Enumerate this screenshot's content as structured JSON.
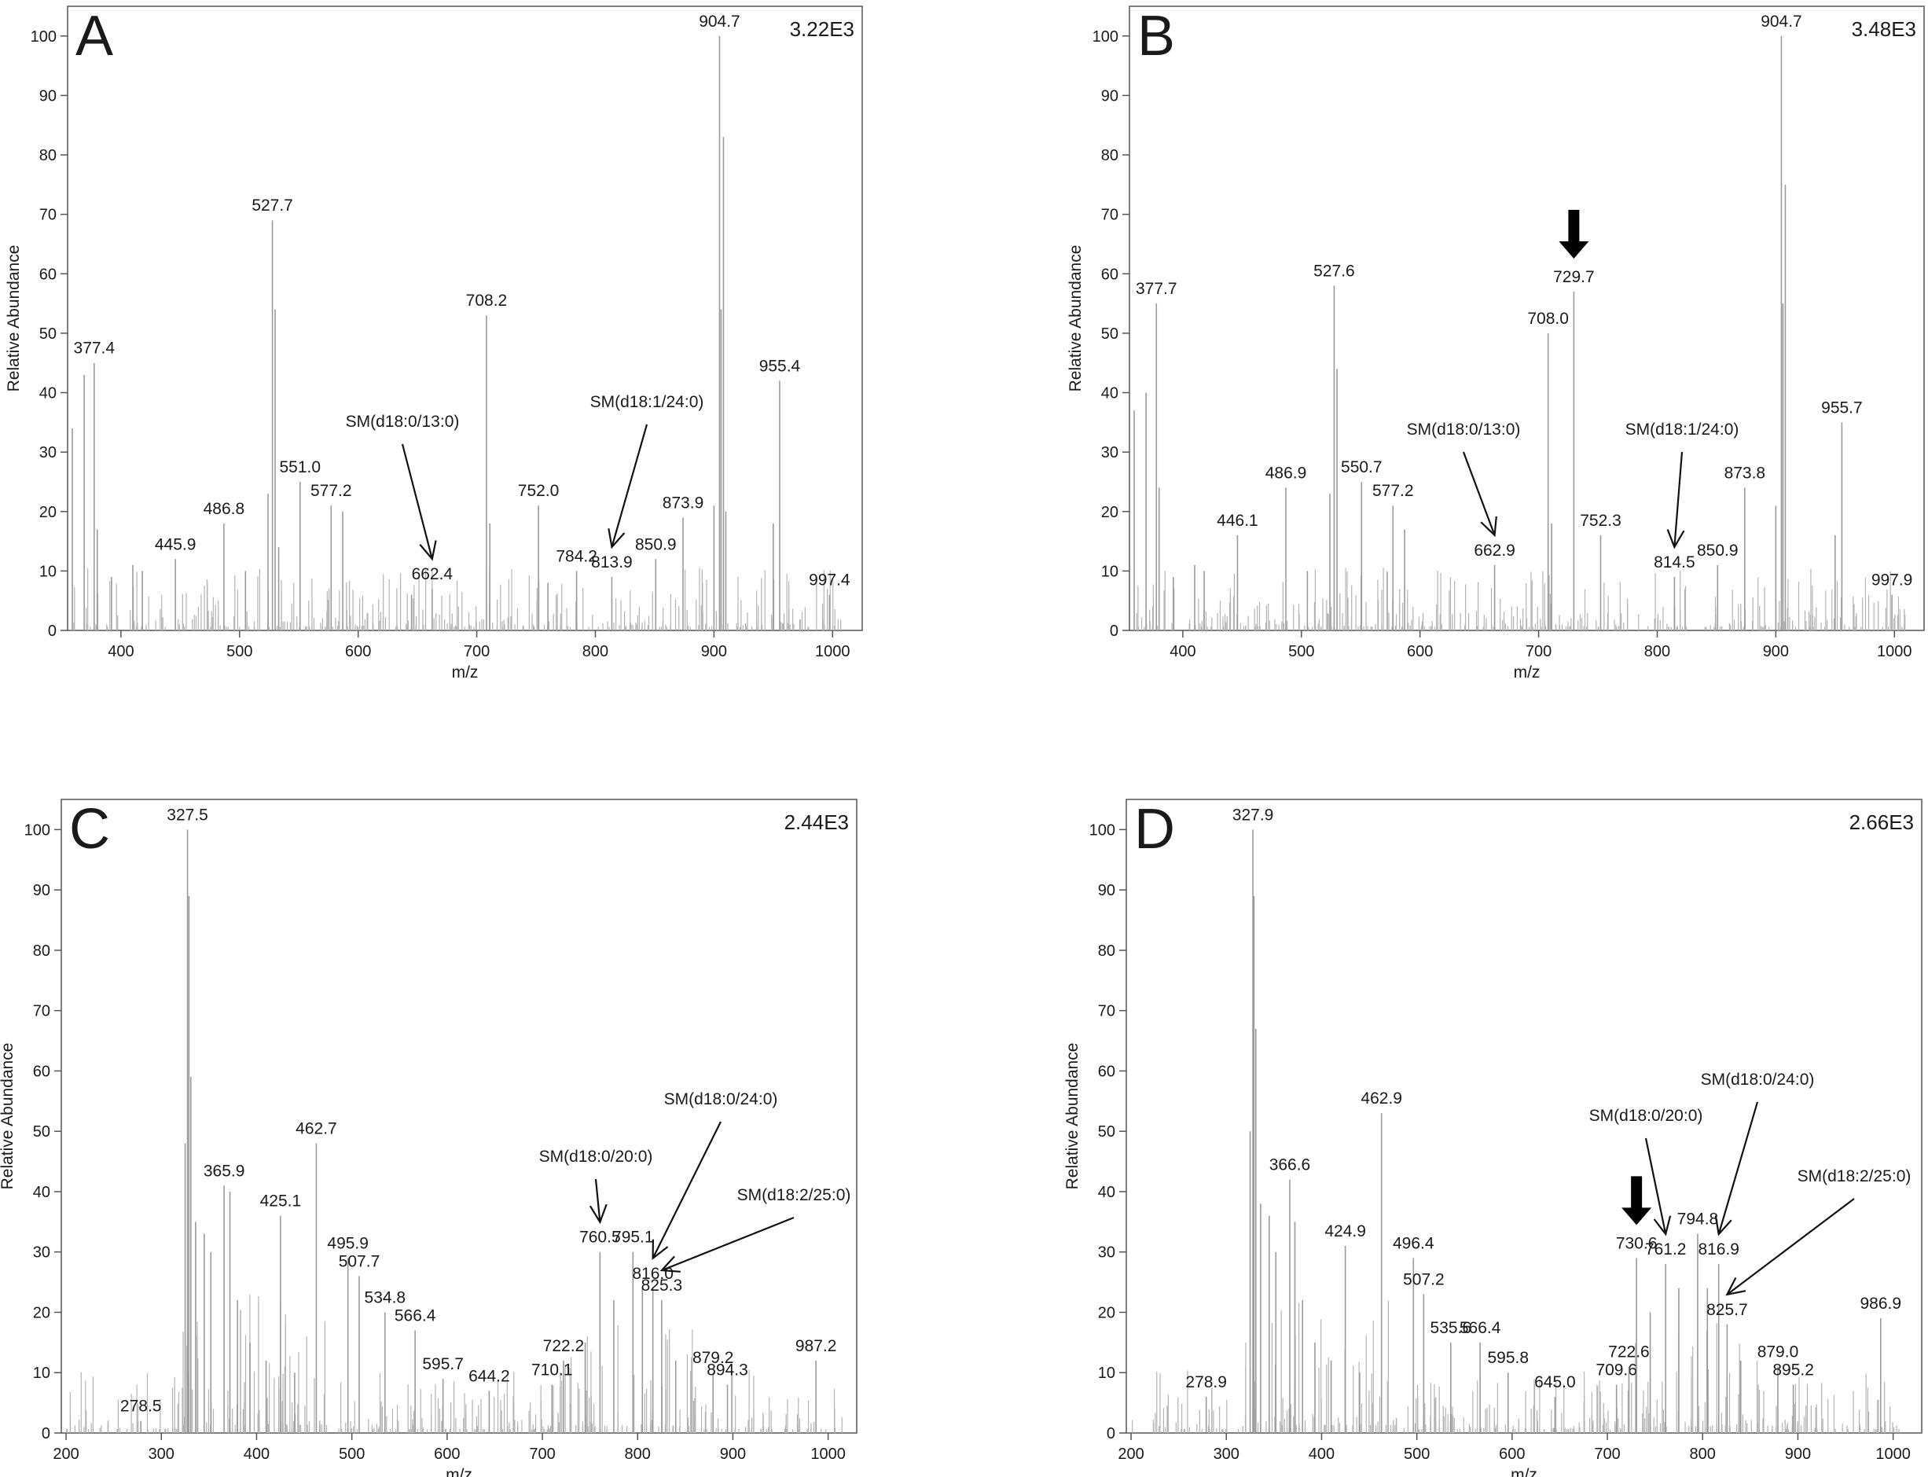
{
  "figure": {
    "panels": [
      {
        "letter": "A",
        "intensity": "3.22E3",
        "xlabel": "m/z",
        "ylabel": "Relative Abundance",
        "xlim": [
          355,
          1025
        ],
        "ylim": [
          0,
          105
        ],
        "xticks": [
          400,
          500,
          600,
          700,
          800,
          900,
          1000
        ],
        "yticks": [
          0,
          10,
          20,
          30,
          40,
          50,
          60,
          70,
          80,
          90,
          100
        ],
        "peaks": [
          {
            "x": 359,
            "y": 34
          },
          {
            "x": 369,
            "y": 43
          },
          {
            "x": 377.4,
            "y": 45,
            "label": "377.4"
          },
          {
            "x": 380,
            "y": 17
          },
          {
            "x": 392,
            "y": 9
          },
          {
            "x": 410,
            "y": 11
          },
          {
            "x": 418,
            "y": 10
          },
          {
            "x": 445.9,
            "y": 12,
            "label": "445.9"
          },
          {
            "x": 486.8,
            "y": 18,
            "label": "486.8"
          },
          {
            "x": 505,
            "y": 10
          },
          {
            "x": 524,
            "y": 23
          },
          {
            "x": 527.7,
            "y": 69,
            "label": "527.7"
          },
          {
            "x": 530,
            "y": 54
          },
          {
            "x": 533,
            "y": 14
          },
          {
            "x": 551.0,
            "y": 25,
            "label": "551.0"
          },
          {
            "x": 577.2,
            "y": 21,
            "label": "577.2"
          },
          {
            "x": 587,
            "y": 20
          },
          {
            "x": 645,
            "y": 6
          },
          {
            "x": 662.4,
            "y": 7,
            "label": "662.4"
          },
          {
            "x": 708.2,
            "y": 53,
            "label": "708.2"
          },
          {
            "x": 711,
            "y": 18
          },
          {
            "x": 752.0,
            "y": 21,
            "label": "752.0"
          },
          {
            "x": 760,
            "y": 8
          },
          {
            "x": 784.2,
            "y": 10,
            "label": "784.2"
          },
          {
            "x": 813.9,
            "y": 9,
            "label": "813.9"
          },
          {
            "x": 850.9,
            "y": 12,
            "label": "850.9"
          },
          {
            "x": 873.9,
            "y": 19,
            "label": "873.9"
          },
          {
            "x": 900,
            "y": 21
          },
          {
            "x": 904.7,
            "y": 100,
            "label": "904.7"
          },
          {
            "x": 906,
            "y": 54
          },
          {
            "x": 908,
            "y": 83
          },
          {
            "x": 910,
            "y": 20
          },
          {
            "x": 950,
            "y": 18
          },
          {
            "x": 955.4,
            "y": 42,
            "label": "955.4"
          },
          {
            "x": 997.4,
            "y": 6,
            "label": "997.4"
          }
        ],
        "annotations": [
          {
            "text": "SM(d18:0/13:0)",
            "target_mz": 662.4
          },
          {
            "text": "SM(d18:1/24:0)",
            "target_mz": 813.9
          }
        ],
        "bold_arrow_mz": null
      },
      {
        "letter": "B",
        "intensity": "3.48E3",
        "xlabel": "m/z",
        "ylabel": "Relative Abundance",
        "xlim": [
          355,
          1025
        ],
        "ylim": [
          0,
          105
        ],
        "xticks": [
          400,
          500,
          600,
          700,
          800,
          900,
          1000
        ],
        "yticks": [
          0,
          10,
          20,
          30,
          40,
          50,
          60,
          70,
          80,
          90,
          100
        ],
        "peaks": [
          {
            "x": 359,
            "y": 37
          },
          {
            "x": 369,
            "y": 40
          },
          {
            "x": 377.7,
            "y": 55,
            "label": "377.7"
          },
          {
            "x": 380,
            "y": 24
          },
          {
            "x": 392,
            "y": 9
          },
          {
            "x": 410,
            "y": 11
          },
          {
            "x": 418,
            "y": 10
          },
          {
            "x": 446.1,
            "y": 16,
            "label": "446.1"
          },
          {
            "x": 486.9,
            "y": 24,
            "label": "486.9"
          },
          {
            "x": 505,
            "y": 10
          },
          {
            "x": 524,
            "y": 23
          },
          {
            "x": 527.6,
            "y": 58,
            "label": "527.6"
          },
          {
            "x": 530,
            "y": 44
          },
          {
            "x": 550.7,
            "y": 25,
            "label": "550.7"
          },
          {
            "x": 577.2,
            "y": 21,
            "label": "577.2"
          },
          {
            "x": 587,
            "y": 17
          },
          {
            "x": 662.9,
            "y": 11,
            "label": "662.9"
          },
          {
            "x": 708.0,
            "y": 50,
            "label": "708.0"
          },
          {
            "x": 711,
            "y": 18
          },
          {
            "x": 729.7,
            "y": 57,
            "label": "729.7"
          },
          {
            "x": 752.3,
            "y": 16,
            "label": "752.3"
          },
          {
            "x": 814.5,
            "y": 9,
            "label": "814.5"
          },
          {
            "x": 850.9,
            "y": 11,
            "label": "850.9"
          },
          {
            "x": 873.8,
            "y": 24,
            "label": "873.8"
          },
          {
            "x": 900,
            "y": 21
          },
          {
            "x": 904.7,
            "y": 100,
            "label": "904.7"
          },
          {
            "x": 906,
            "y": 55
          },
          {
            "x": 908,
            "y": 75
          },
          {
            "x": 950,
            "y": 16
          },
          {
            "x": 955.7,
            "y": 35,
            "label": "955.7"
          },
          {
            "x": 997.9,
            "y": 6,
            "label": "997.9"
          }
        ],
        "annotations": [
          {
            "text": "SM(d18:0/13:0)",
            "target_mz": 662.9
          },
          {
            "text": "SM(d18:1/24:0)",
            "target_mz": 814.5
          }
        ],
        "bold_arrow_mz": 729.7
      },
      {
        "letter": "C",
        "intensity": "2.44E3",
        "xlabel": "m/z",
        "ylabel": "Relative Abundance",
        "xlim": [
          195,
          1030
        ],
        "ylim": [
          0,
          105
        ],
        "xticks": [
          200,
          300,
          400,
          500,
          600,
          700,
          800,
          900,
          1000
        ],
        "yticks": [
          0,
          10,
          20,
          30,
          40,
          50,
          60,
          70,
          80,
          90,
          100
        ],
        "peaks": [
          {
            "x": 278.5,
            "y": 2,
            "label": "278.5"
          },
          {
            "x": 325,
            "y": 48
          },
          {
            "x": 327.5,
            "y": 100,
            "label": "327.5"
          },
          {
            "x": 329,
            "y": 89
          },
          {
            "x": 331,
            "y": 59
          },
          {
            "x": 336,
            "y": 35
          },
          {
            "x": 345,
            "y": 33
          },
          {
            "x": 352,
            "y": 30
          },
          {
            "x": 365.9,
            "y": 41,
            "label": "365.9"
          },
          {
            "x": 372,
            "y": 40
          },
          {
            "x": 380,
            "y": 22
          },
          {
            "x": 393,
            "y": 15
          },
          {
            "x": 410,
            "y": 12
          },
          {
            "x": 425.1,
            "y": 36,
            "label": "425.1"
          },
          {
            "x": 440,
            "y": 10
          },
          {
            "x": 462.7,
            "y": 48,
            "label": "462.7"
          },
          {
            "x": 495.9,
            "y": 29,
            "label": "495.9"
          },
          {
            "x": 507.7,
            "y": 26,
            "label": "507.7"
          },
          {
            "x": 534.8,
            "y": 20,
            "label": "534.8"
          },
          {
            "x": 566.4,
            "y": 17,
            "label": "566.4"
          },
          {
            "x": 595.7,
            "y": 9,
            "label": "595.7"
          },
          {
            "x": 644.2,
            "y": 7,
            "label": "644.2"
          },
          {
            "x": 710.1,
            "y": 8,
            "label": "710.1"
          },
          {
            "x": 722.2,
            "y": 12,
            "label": "722.2"
          },
          {
            "x": 745,
            "y": 15
          },
          {
            "x": 760.5,
            "y": 30,
            "label": "760.5"
          },
          {
            "x": 775,
            "y": 22
          },
          {
            "x": 795.1,
            "y": 30,
            "label": "795.1"
          },
          {
            "x": 805,
            "y": 24
          },
          {
            "x": 816.0,
            "y": 24,
            "label": "816.0"
          },
          {
            "x": 825.3,
            "y": 22,
            "label": "825.3"
          },
          {
            "x": 840,
            "y": 12
          },
          {
            "x": 879.2,
            "y": 10,
            "label": "879.2"
          },
          {
            "x": 894.3,
            "y": 8,
            "label": "894.3"
          },
          {
            "x": 987.2,
            "y": 12,
            "label": "987.2"
          }
        ],
        "annotations": [
          {
            "text": "SM(d18:0/20:0)",
            "target_mz": 760.5
          },
          {
            "text": "SM(d18:0/24:0)",
            "target_mz": 816.0
          },
          {
            "text": "SM(d18:2/25:0)",
            "target_mz": 825.3
          }
        ],
        "bold_arrow_mz": null
      },
      {
        "letter": "D",
        "intensity": "2.66E3",
        "xlabel": "m/z",
        "ylabel": "Relative Abundance",
        "xlim": [
          195,
          1030
        ],
        "ylim": [
          0,
          105
        ],
        "xticks": [
          200,
          300,
          400,
          500,
          600,
          700,
          800,
          900,
          1000
        ],
        "yticks": [
          0,
          10,
          20,
          30,
          40,
          50,
          60,
          70,
          80,
          90,
          100
        ],
        "peaks": [
          {
            "x": 278.9,
            "y": 6,
            "label": "278.9"
          },
          {
            "x": 325,
            "y": 50
          },
          {
            "x": 327.9,
            "y": 100,
            "label": "327.9"
          },
          {
            "x": 329,
            "y": 89
          },
          {
            "x": 331,
            "y": 67
          },
          {
            "x": 336,
            "y": 38
          },
          {
            "x": 345,
            "y": 36
          },
          {
            "x": 352,
            "y": 30
          },
          {
            "x": 366.6,
            "y": 42,
            "label": "366.6"
          },
          {
            "x": 372,
            "y": 35
          },
          {
            "x": 380,
            "y": 22
          },
          {
            "x": 393,
            "y": 15
          },
          {
            "x": 410,
            "y": 12
          },
          {
            "x": 424.9,
            "y": 31,
            "label": "424.9"
          },
          {
            "x": 440,
            "y": 10
          },
          {
            "x": 462.9,
            "y": 53,
            "label": "462.9"
          },
          {
            "x": 496.4,
            "y": 29,
            "label": "496.4"
          },
          {
            "x": 507.2,
            "y": 23,
            "label": "507.2"
          },
          {
            "x": 535.6,
            "y": 15,
            "label": "535.6"
          },
          {
            "x": 566.4,
            "y": 15,
            "label": "566.4"
          },
          {
            "x": 595.8,
            "y": 10,
            "label": "595.8"
          },
          {
            "x": 645.0,
            "y": 6,
            "label": "645.0"
          },
          {
            "x": 709.6,
            "y": 8,
            "label": "709.6"
          },
          {
            "x": 722.6,
            "y": 11,
            "label": "722.6"
          },
          {
            "x": 730.6,
            "y": 29,
            "label": "730.6"
          },
          {
            "x": 745,
            "y": 20
          },
          {
            "x": 761.2,
            "y": 28,
            "label": "761.2"
          },
          {
            "x": 775,
            "y": 24
          },
          {
            "x": 794.8,
            "y": 33,
            "label": "794.8"
          },
          {
            "x": 805,
            "y": 24
          },
          {
            "x": 816.9,
            "y": 28,
            "label": "816.9"
          },
          {
            "x": 825.7,
            "y": 18,
            "label": "825.7"
          },
          {
            "x": 840,
            "y": 12
          },
          {
            "x": 879.0,
            "y": 11,
            "label": "879.0"
          },
          {
            "x": 895.2,
            "y": 8,
            "label": "895.2"
          },
          {
            "x": 986.9,
            "y": 19,
            "label": "986.9"
          }
        ],
        "annotations": [
          {
            "text": "SM(d18:0/20:0)",
            "target_mz": 761.2
          },
          {
            "text": "SM(d18:0/24:0)",
            "target_mz": 816.9
          },
          {
            "text": "SM(d18:2/25:0)",
            "target_mz": 825.7
          }
        ],
        "bold_arrow_mz": 730.6
      }
    ]
  }
}
